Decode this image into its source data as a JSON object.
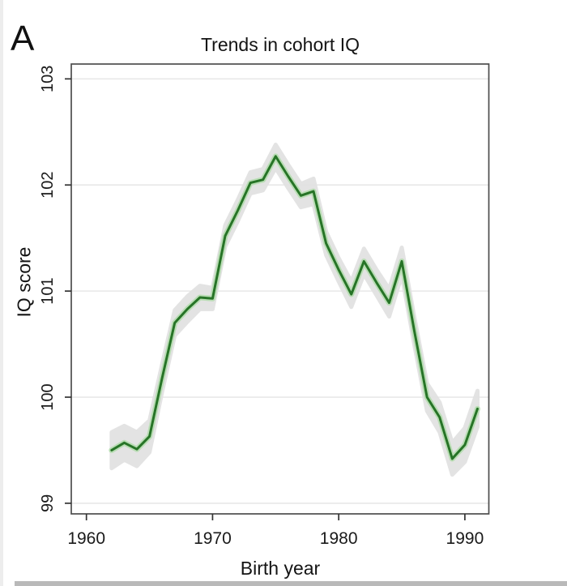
{
  "panel_label": "A",
  "chart_data": {
    "type": "line",
    "title": "Trends in cohort IQ",
    "xlabel": "Birth year",
    "ylabel": "IQ score",
    "x_ticks": [
      1960,
      1970,
      1980,
      1990
    ],
    "y_ticks": [
      99,
      100,
      101,
      102,
      103
    ],
    "xlim": [
      1958.8,
      1991.9
    ],
    "ylim": [
      98.9,
      103.14
    ],
    "grid": "horizontal",
    "legend": "none",
    "series": [
      {
        "name": "Cohort IQ",
        "x": [
          1962,
          1963,
          1964,
          1965,
          1966,
          1967,
          1968,
          1969,
          1970,
          1971,
          1972,
          1973,
          1974,
          1975,
          1976,
          1977,
          1978,
          1979,
          1980,
          1981,
          1982,
          1983,
          1984,
          1985,
          1986,
          1987,
          1988,
          1989,
          1990,
          1991
        ],
        "y": [
          99.5,
          99.57,
          99.51,
          99.63,
          100.18,
          100.7,
          100.83,
          100.94,
          100.93,
          101.52,
          101.76,
          102.02,
          102.05,
          102.27,
          102.08,
          101.9,
          101.94,
          101.45,
          101.2,
          100.97,
          101.28,
          101.08,
          100.89,
          101.28,
          100.62,
          100.0,
          99.81,
          99.42,
          99.55,
          99.89
        ],
        "ci_halfwidth": [
          0.17,
          0.16,
          0.16,
          0.15,
          0.13,
          0.12,
          0.12,
          0.11,
          0.1,
          0.1,
          0.1,
          0.1,
          0.1,
          0.11,
          0.11,
          0.11,
          0.12,
          0.11,
          0.11,
          0.12,
          0.12,
          0.12,
          0.13,
          0.13,
          0.13,
          0.13,
          0.14,
          0.15,
          0.16,
          0.17
        ]
      }
    ],
    "colors": {
      "line": "#277427",
      "line_halo": "#b2dcab",
      "band": "#e2e2e2",
      "grid": "#e8e8e8",
      "frame": "#4d4d4d",
      "tick": "#333333",
      "text": "#1a1a1a"
    }
  }
}
